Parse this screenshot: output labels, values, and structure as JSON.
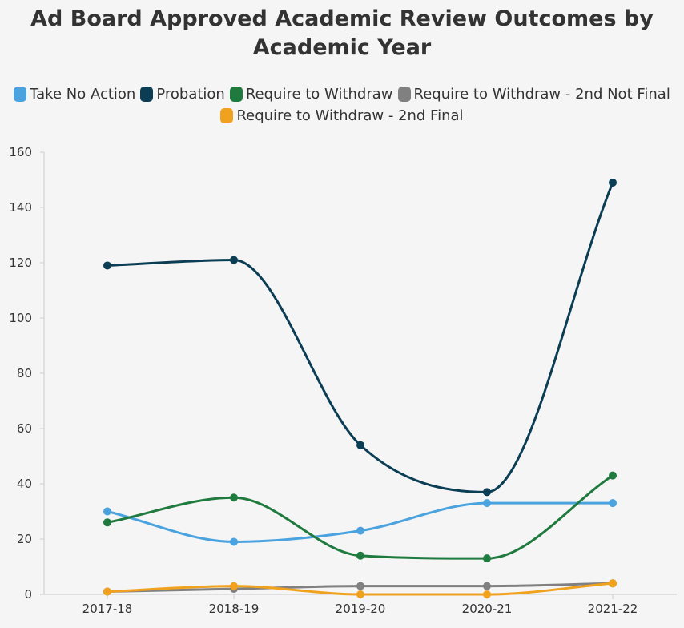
{
  "chart_data": {
    "type": "line",
    "title": [
      "Ad Board Approved Academic Review Outcomes by",
      "Academic Year"
    ],
    "xlabel": "",
    "ylabel": "",
    "x": [
      "2017-18",
      "2018-19",
      "2019-20",
      "2020-21",
      "2021-22"
    ],
    "ylim": [
      0,
      160
    ],
    "yticks": [
      0,
      20,
      40,
      60,
      80,
      100,
      120,
      140,
      160
    ],
    "grid": false,
    "legend_position": "top",
    "series": [
      {
        "name": "Take No Action",
        "color": "#4aa3df",
        "values": [
          30,
          19,
          23,
          33,
          33
        ]
      },
      {
        "name": "Probation",
        "color": "#0b3d54",
        "values": [
          119,
          121,
          54,
          37,
          149
        ]
      },
      {
        "name": "Require to Withdraw",
        "color": "#1f7a3e",
        "values": [
          26,
          35,
          14,
          13,
          43
        ]
      },
      {
        "name": "Require to Withdraw - 2nd Not Final",
        "color": "#808080",
        "values": [
          1,
          2,
          3,
          3,
          4
        ]
      },
      {
        "name": "Require to Withdraw - 2nd Final",
        "color": "#f0a21f",
        "values": [
          1,
          3,
          0,
          0,
          4
        ]
      }
    ]
  }
}
